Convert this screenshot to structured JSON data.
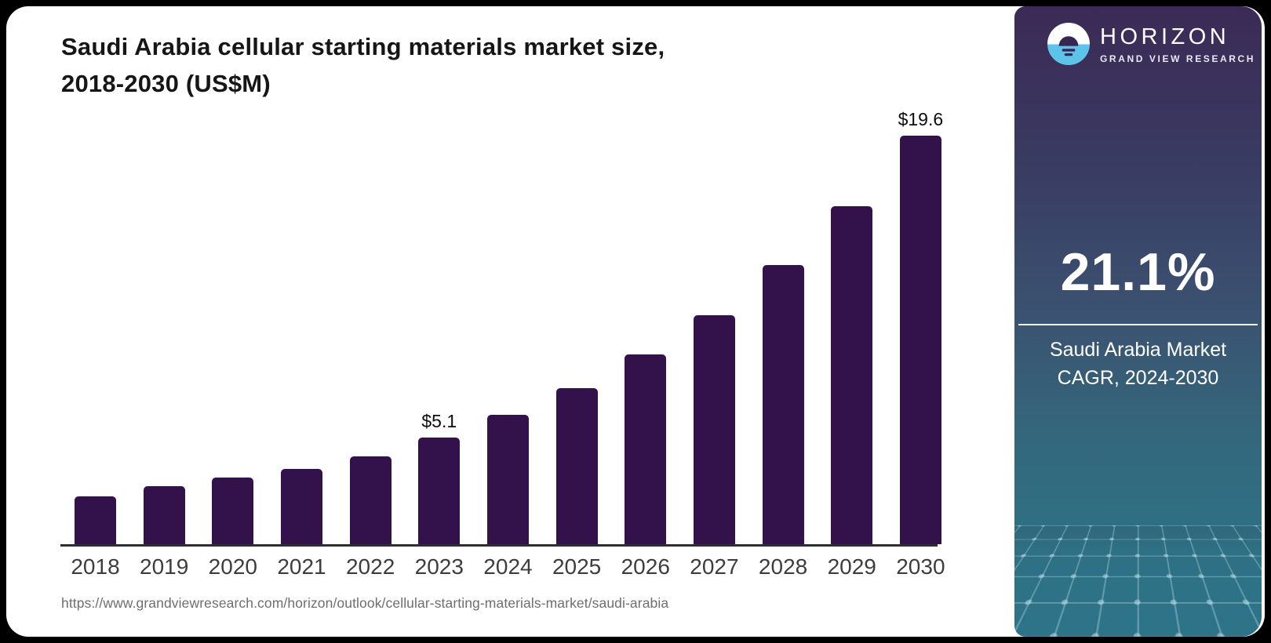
{
  "page": {
    "background": "#000000",
    "card_background": "#FFFFFF"
  },
  "chart": {
    "title_line1": "Saudi Arabia cellular starting materials market size,",
    "title_line2": "2018-2030 (US$M)",
    "source_url": "https://www.grandviewresearch.com/horizon/outlook/cellular-starting-materials-market/saudi-arabia"
  },
  "chart_data": {
    "type": "bar",
    "title": "Saudi Arabia cellular starting materials market size, 2018-2030 (US$M)",
    "categories": [
      "2018",
      "2019",
      "2020",
      "2021",
      "2022",
      "2023",
      "2024",
      "2025",
      "2026",
      "2027",
      "2028",
      "2029",
      "2030"
    ],
    "values": [
      2.3,
      2.8,
      3.2,
      3.6,
      4.2,
      5.1,
      6.2,
      7.5,
      9.1,
      11.0,
      13.4,
      16.2,
      19.6
    ],
    "unit": "US$M",
    "value_prefix": "$",
    "labeled_points": {
      "2023": "$5.1",
      "2030": "$19.6"
    },
    "ylim": [
      0,
      20
    ],
    "xlabel": "",
    "ylabel": "",
    "gridlines": false,
    "legend": "none",
    "bar_color": "#33114A"
  },
  "sidebar": {
    "brand": {
      "name": "HORIZON",
      "subtitle": "GRAND VIEW RESEARCH",
      "logo_colors": {
        "top": "#FFFFFF",
        "bottom": "#5EC3E8",
        "mark": "#372653"
      }
    },
    "stat": {
      "value": "21.1%",
      "caption_line1": "Saudi Arabia Market",
      "caption_line2": "CAGR, 2024-2030"
    },
    "colors": {
      "gradient_top": "#3B2A56",
      "gradient_mid": "#3B5170",
      "gradient_bottom": "#2D7489",
      "mesh_line": "#A8CFDA"
    }
  }
}
